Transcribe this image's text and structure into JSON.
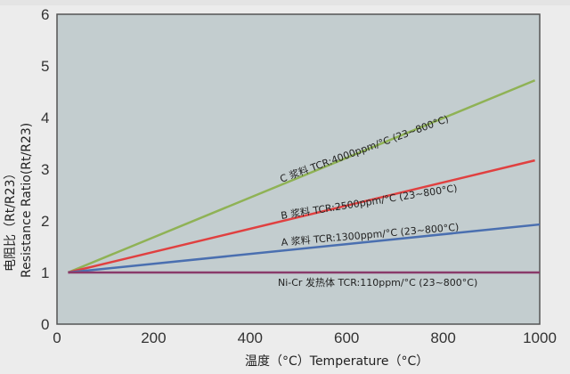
{
  "chart_data": {
    "type": "line",
    "title": "",
    "xlabel": "温度（°C）Temperature（°C）",
    "ylabel_cn": "电阻比（Rt/R23）",
    "ylabel_en": "Resistance Ratio(Rt/R23)",
    "xlim": [
      0,
      1000
    ],
    "ylim": [
      0,
      6
    ],
    "x_ticks": [
      "0",
      "200",
      "400",
      "600",
      "800",
      "1000"
    ],
    "y_ticks": [
      "0",
      "1",
      "2",
      "3",
      "4",
      "5",
      "6"
    ],
    "grid": false,
    "plot_background": "#c3cdcf",
    "series": [
      {
        "name": "C 浆料 TCR:4000ppm/°C (23~800°C)",
        "color": "#8fb255",
        "x": [
          23,
          990
        ],
        "values": [
          1.0,
          4.72
        ]
      },
      {
        "name": "B 浆料 TCR:2500ppm/°C (23~800°C)",
        "color": "#e04040",
        "x": [
          23,
          990
        ],
        "values": [
          1.0,
          3.17
        ]
      },
      {
        "name": "A 浆料 TCR:1300ppm/°C (23~800°C)",
        "color": "#4a6fb0",
        "x": [
          23,
          1000
        ],
        "values": [
          1.0,
          1.93
        ]
      },
      {
        "name": "Ni-Cr 发热体 TCR:110ppm/°C (23~800°C)",
        "color": "#8a3a6a",
        "x": [
          23,
          1000
        ],
        "values": [
          1.0,
          1.0
        ]
      }
    ],
    "annotations": [
      {
        "text": "C 浆料 TCR:4000ppm/°C (23~800°C)",
        "series": 0
      },
      {
        "text": "B 浆料 TCR:2500ppm/°C (23~800°C)",
        "series": 1
      },
      {
        "text": "A 浆料 TCR:1300ppm/°C (23~800°C)",
        "series": 2
      },
      {
        "text": "Ni-Cr 发热体 TCR:110ppm/°C (23~800°C)",
        "series": 3
      }
    ]
  }
}
